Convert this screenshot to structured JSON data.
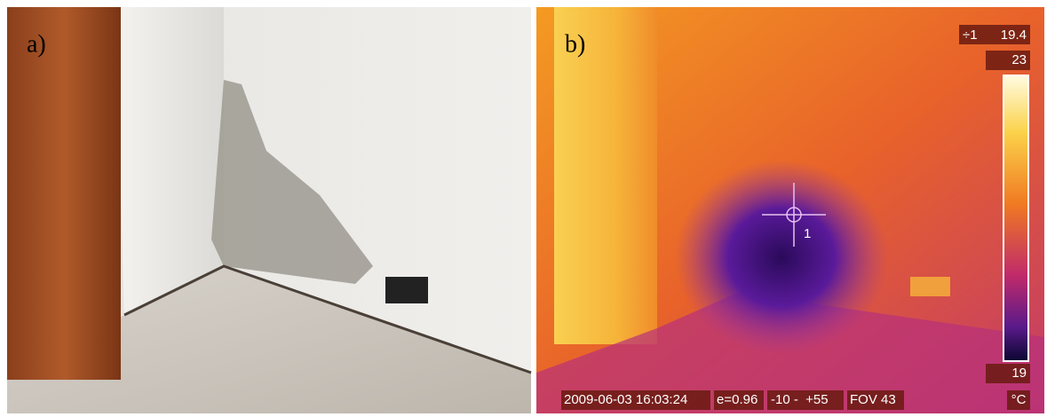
{
  "panels": [
    {
      "label": "a)"
    },
    {
      "label": "b)",
      "spot": {
        "marker": "÷1",
        "value": "19.4",
        "label": "1"
      },
      "scale": {
        "max": "23",
        "min": "19",
        "unit": "°C"
      },
      "status_bar": [
        "2009-06-03 16:03:24",
        "e=0.96",
        "-10 -  +55",
        "FOV 43"
      ]
    }
  ]
}
